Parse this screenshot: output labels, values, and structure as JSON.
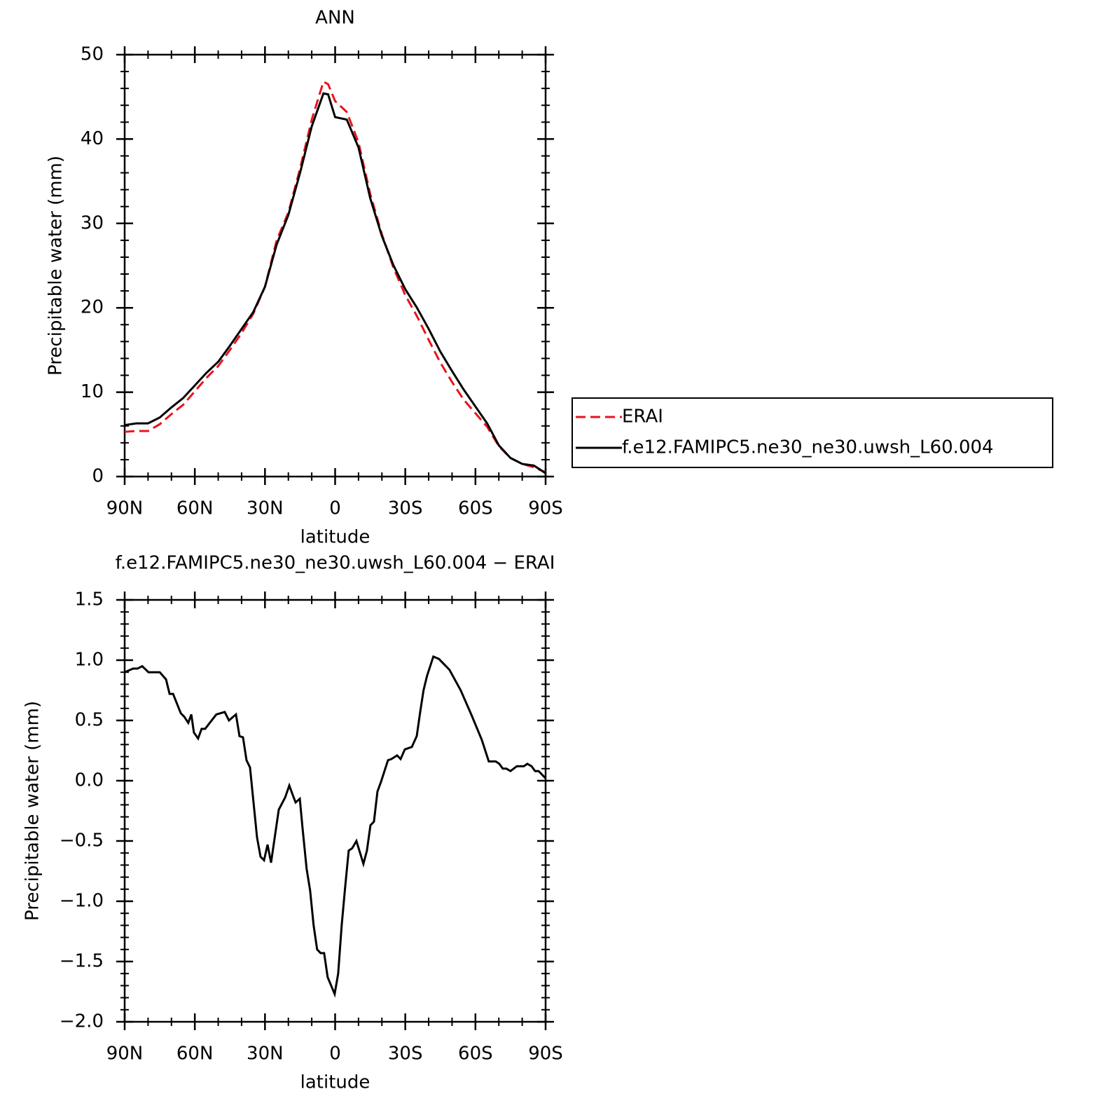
{
  "chart_data": [
    {
      "type": "line",
      "title": "ANN",
      "ylabel": "Precipitable water (mm)",
      "xlabel": "latitude",
      "x": [
        90,
        85,
        80,
        75,
        70,
        65,
        60,
        55,
        50,
        45,
        40,
        35,
        30,
        25,
        20,
        15,
        10,
        5,
        3,
        0,
        -5,
        -10,
        -15,
        -20,
        -25,
        -30,
        -35,
        -40,
        -45,
        -50,
        -55,
        -60,
        -65,
        -70,
        -75,
        -80,
        -85,
        -90
      ],
      "series": [
        {
          "name": "ERAI",
          "color": "#e8141c",
          "linestyle": "dashed",
          "values": [
            5.3,
            5.4,
            5.4,
            6.2,
            7.4,
            8.5,
            10.1,
            11.7,
            13.1,
            15.0,
            17.0,
            19.3,
            22.5,
            28.0,
            31.3,
            36.5,
            42.3,
            46.8,
            46.5,
            44.5,
            43.2,
            39.6,
            33.5,
            28.7,
            24.7,
            21.5,
            19.0,
            16.2,
            13.5,
            11.2,
            9.1,
            7.5,
            5.9,
            3.6,
            2.2,
            1.5,
            1.1,
            0.5
          ]
        },
        {
          "name": "f.e12.FAMIPC5.ne30_ne30.uwsh_L60.004",
          "color": "#000000",
          "linestyle": "solid",
          "values": [
            6.1,
            6.3,
            6.3,
            7.0,
            8.2,
            9.3,
            10.8,
            12.3,
            13.6,
            15.5,
            17.5,
            19.5,
            22.5,
            27.5,
            31.0,
            36.0,
            41.5,
            45.4,
            45.3,
            42.6,
            42.3,
            39.0,
            33.0,
            28.5,
            25.0,
            22.2,
            20.0,
            17.5,
            14.8,
            12.5,
            10.3,
            8.3,
            6.3,
            3.7,
            2.2,
            1.5,
            1.3,
            0.4
          ]
        }
      ],
      "xlim": [
        90,
        -90
      ],
      "xticks": [
        {
          "value": 90,
          "label": "90N"
        },
        {
          "value": 60,
          "label": "60N"
        },
        {
          "value": 30,
          "label": "30N"
        },
        0,
        {
          "value": -30,
          "label": "30S"
        },
        {
          "value": -60,
          "label": "60S"
        },
        {
          "value": -90,
          "label": "90S"
        }
      ],
      "ylim": [
        0,
        50
      ],
      "yticks": [
        0,
        10,
        20,
        30,
        40,
        50
      ],
      "legend_position": "right"
    },
    {
      "type": "line",
      "title": "f.e12.FAMIPC5.ne30_ne30.uwsh_L60.004 − ERAI",
      "ylabel": "Precipitable water (mm)",
      "xlabel": "latitude",
      "x": [
        90,
        86.4,
        84.5,
        82.5,
        79.8,
        75,
        72.3,
        70.8,
        69.3,
        66,
        64.5,
        62.8,
        61.5,
        60.4,
        58.6,
        57.1,
        55.6,
        53.2,
        50.8,
        47.2,
        45.4,
        42.4,
        40.9,
        39.4,
        37.9,
        36.4,
        33.4,
        31.9,
        30.4,
        28.9,
        27.4,
        24.1,
        21.4,
        19.6,
        18.1,
        16.9,
        15.1,
        14.0,
        12.2,
        10.7,
        9.2,
        7.7,
        6.2,
        4.7,
        3.2,
        0.2,
        -1.3,
        -2.8,
        -4.3,
        -5.8,
        -7.3,
        -9.1,
        -12.1,
        -13.6,
        -15.1,
        -16.6,
        -18.1,
        -19.6,
        -22.6,
        -24.1,
        -26.5,
        -28.0,
        -29.8,
        -32.8,
        -34.9,
        -36.3,
        -37.8,
        -39.3,
        -42.0,
        -44.4,
        -48.9,
        -53.7,
        -58.2,
        -62.7,
        -65.7,
        -68.7,
        -70.2,
        -71.7,
        -73.2,
        -75.0,
        -77.7,
        -80.7,
        -82.2,
        -84.0,
        -85.5,
        -87.0,
        -90
      ],
      "series": [
        {
          "name": "f.e12.FAMIPC5.ne30_ne30.uwsh_L60.004",
          "color": "#000000",
          "linestyle": "solid",
          "values": [
            0.9,
            0.93,
            0.93,
            0.95,
            0.9,
            0.9,
            0.84,
            0.72,
            0.72,
            0.56,
            0.53,
            0.48,
            0.55,
            0.4,
            0.35,
            0.43,
            0.43,
            0.49,
            0.55,
            0.57,
            0.5,
            0.55,
            0.37,
            0.36,
            0.17,
            0.11,
            -0.47,
            -0.63,
            -0.66,
            -0.53,
            -0.68,
            -0.24,
            -0.14,
            -0.04,
            -0.12,
            -0.18,
            -0.15,
            -0.38,
            -0.73,
            -0.91,
            -1.2,
            -1.4,
            -1.43,
            -1.43,
            -1.63,
            -1.77,
            -1.6,
            -1.2,
            -0.88,
            -0.58,
            -0.56,
            -0.5,
            -0.69,
            -0.58,
            -0.37,
            -0.34,
            -0.09,
            -0.01,
            0.17,
            0.18,
            0.21,
            0.18,
            0.26,
            0.28,
            0.37,
            0.56,
            0.75,
            0.87,
            1.03,
            1.01,
            0.92,
            0.75,
            0.55,
            0.34,
            0.16,
            0.16,
            0.14,
            0.1,
            0.1,
            0.08,
            0.12,
            0.12,
            0.14,
            0.12,
            0.08,
            0.08,
            0.02
          ]
        }
      ],
      "xlim": [
        90,
        -90
      ],
      "xticks": [
        {
          "value": 90,
          "label": "90N"
        },
        {
          "value": 60,
          "label": "60N"
        },
        {
          "value": 30,
          "label": "30N"
        },
        0,
        {
          "value": -30,
          "label": "30S"
        },
        {
          "value": -60,
          "label": "60S"
        },
        {
          "value": -90,
          "label": "90S"
        }
      ],
      "ylim": [
        -2.0,
        1.5
      ],
      "yticks": [
        {
          "value": -2.0,
          "label": "−2.0"
        },
        {
          "value": -1.5,
          "label": "−1.5"
        },
        {
          "value": -1.0,
          "label": "−1.0"
        },
        {
          "value": -0.5,
          "label": "−0.5"
        },
        {
          "value": 0.0,
          "label": "0.0"
        },
        0.5,
        {
          "value": 1.0,
          "label": "1.0"
        },
        1.5
      ]
    }
  ]
}
